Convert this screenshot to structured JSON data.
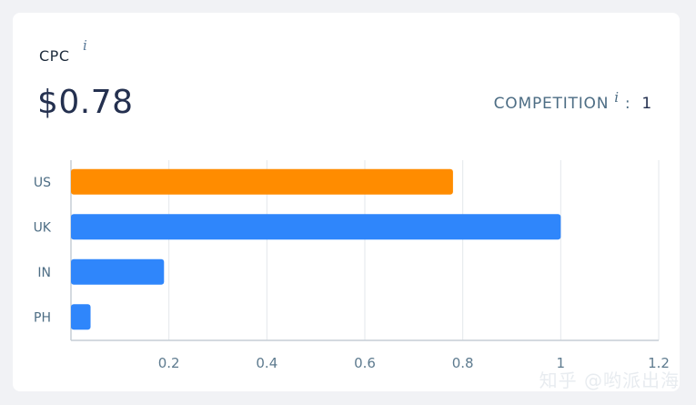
{
  "metric": {
    "label": "CPC",
    "info_icon": "info-icon",
    "value": "$0.78"
  },
  "competition": {
    "label": "COMPETITION",
    "info_icon": "info-icon",
    "separator": ":",
    "value": "1"
  },
  "colors": {
    "highlight": "#ff8c00",
    "bar": "#2f86fb",
    "grid": "#e3e7eb",
    "axis": "#c5ced6"
  },
  "chart_data": {
    "type": "bar",
    "orientation": "horizontal",
    "categories": [
      "US",
      "UK",
      "IN",
      "PH"
    ],
    "values": [
      0.78,
      1.0,
      0.19,
      0.04
    ],
    "highlight_index": 0,
    "xlim": [
      0,
      1.2
    ],
    "xticks": [
      0.2,
      0.4,
      0.6,
      0.8,
      1,
      1.2
    ],
    "grid": true
  },
  "watermark": "知乎 @哟派出海"
}
